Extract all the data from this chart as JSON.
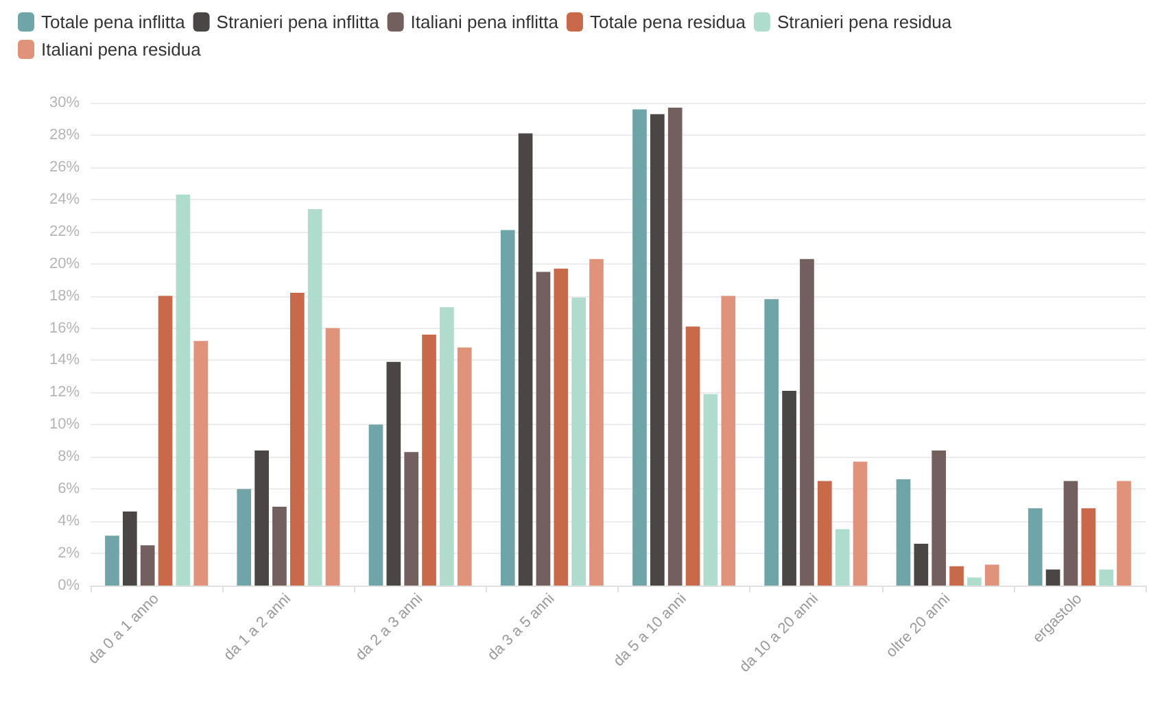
{
  "chart_data": {
    "type": "bar",
    "categories": [
      "da 0 a 1 anno",
      "da 1 a 2 anni",
      "da 2 a 3 anni",
      "da 3 a 5 anni",
      "da 5 a 10 anni",
      "da 10 a 20 anni",
      "oltre 20 anni",
      "ergastolo"
    ],
    "series": [
      {
        "name": "Totale pena inflitta",
        "color": "#6fa5a8",
        "values": [
          3.1,
          6.0,
          10.0,
          22.1,
          29.6,
          17.8,
          6.6,
          4.8
        ]
      },
      {
        "name": "Stranieri pena inflitta",
        "color": "#4a4646",
        "values": [
          4.6,
          8.4,
          13.9,
          28.1,
          29.3,
          12.1,
          2.6,
          1.0
        ]
      },
      {
        "name": "Italiani pena inflitta",
        "color": "#735f5e",
        "values": [
          2.5,
          4.9,
          8.3,
          19.5,
          29.7,
          20.3,
          8.4,
          6.5
        ]
      },
      {
        "name": "Totale pena residua",
        "color": "#c8694a",
        "values": [
          18.0,
          18.2,
          15.6,
          19.7,
          16.1,
          6.5,
          1.2,
          4.8
        ]
      },
      {
        "name": "Stranieri pena residua",
        "color": "#aedccd",
        "values": [
          24.3,
          23.4,
          17.3,
          17.9,
          11.9,
          3.5,
          0.5,
          1.0
        ]
      },
      {
        "name": "Italiani pena residua",
        "color": "#e0937a",
        "values": [
          15.2,
          16.0,
          14.8,
          20.3,
          18.0,
          7.7,
          1.3,
          6.5
        ]
      }
    ],
    "ylim": [
      0,
      30
    ],
    "yticks": [
      {
        "value": 0,
        "label": "0%"
      },
      {
        "value": 2,
        "label": "2%"
      },
      {
        "value": 4,
        "label": "4%"
      },
      {
        "value": 6,
        "label": "6%"
      },
      {
        "value": 8,
        "label": "8%"
      },
      {
        "value": 10,
        "label": "10%"
      },
      {
        "value": 12,
        "label": "12%"
      },
      {
        "value": 14,
        "label": "14%"
      },
      {
        "value": 16,
        "label": "16%"
      },
      {
        "value": 18,
        "label": "18%"
      },
      {
        "value": 20,
        "label": "20%"
      },
      {
        "value": 22,
        "label": "22%"
      },
      {
        "value": 24,
        "label": "24%"
      },
      {
        "value": 26,
        "label": "26%"
      },
      {
        "value": 28,
        "label": "28%"
      },
      {
        "value": 30,
        "label": "30%"
      }
    ],
    "grid": "y",
    "legend": "top left"
  }
}
